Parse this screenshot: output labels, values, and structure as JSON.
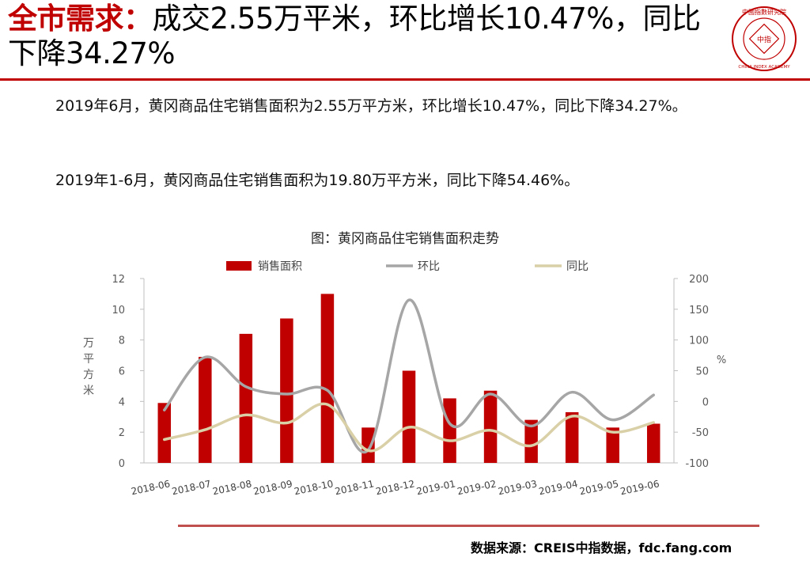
{
  "header": {
    "title_lead": "全市需求：",
    "title_rest": "成交2.55万平米，环比增长10.47%，同比下降34.27%",
    "logo_text_top": "中國指數研究院",
    "logo_text_center": "中指",
    "logo_text_bottom": "CHINA INDEX ACADEMY"
  },
  "body": {
    "paragraph_1": "2019年6月，黄冈商品住宅销售面积为2.55万平方米，环比增长10.47%，同比下降34.27%。",
    "paragraph_2": "2019年1-6月，黄冈商品住宅销售面积为19.80万平方米，同比下降54.46%。"
  },
  "chart_data": {
    "type": "bar",
    "title": "图：黄冈商品住宅销售面积走势",
    "categories": [
      "2018-06",
      "2018-07",
      "2018-08",
      "2018-09",
      "2018-10",
      "2018-11",
      "2018-12",
      "2019-01",
      "2019-02",
      "2019-03",
      "2019-04",
      "2019-05",
      "2019-06"
    ],
    "series": [
      {
        "name": "销售面积",
        "type": "bar",
        "axis": "left",
        "color": "#c00000",
        "values": [
          3.9,
          6.9,
          8.4,
          9.4,
          11.0,
          2.3,
          6.0,
          4.2,
          4.7,
          2.8,
          3.3,
          2.3,
          2.55
        ]
      },
      {
        "name": "环比",
        "type": "line",
        "axis": "right",
        "color": "#a6a6a6",
        "values": [
          -14,
          72,
          24,
          12,
          18,
          -79,
          165,
          -36,
          12,
          -40,
          15,
          -30,
          10.47
        ]
      },
      {
        "name": "同比",
        "type": "line",
        "axis": "right",
        "color": "#d9d0a8",
        "values": [
          -62,
          -46,
          -22,
          -35,
          -5,
          -80,
          -42,
          -64,
          -47,
          -72,
          -24,
          -50,
          -34.27
        ]
      }
    ],
    "ylabel": "万平方米",
    "y2label": "%",
    "ylim": [
      0,
      12
    ],
    "yticks": [
      0,
      2,
      4,
      6,
      8,
      10,
      12
    ],
    "y2lim": [
      -100,
      200
    ],
    "y2ticks": [
      -100,
      -50,
      0,
      50,
      100,
      150,
      200
    ],
    "legend_position": "top-center",
    "grid": false
  },
  "footer": {
    "source": "数据来源：CREIS中指数据，fdc.fang.com"
  }
}
